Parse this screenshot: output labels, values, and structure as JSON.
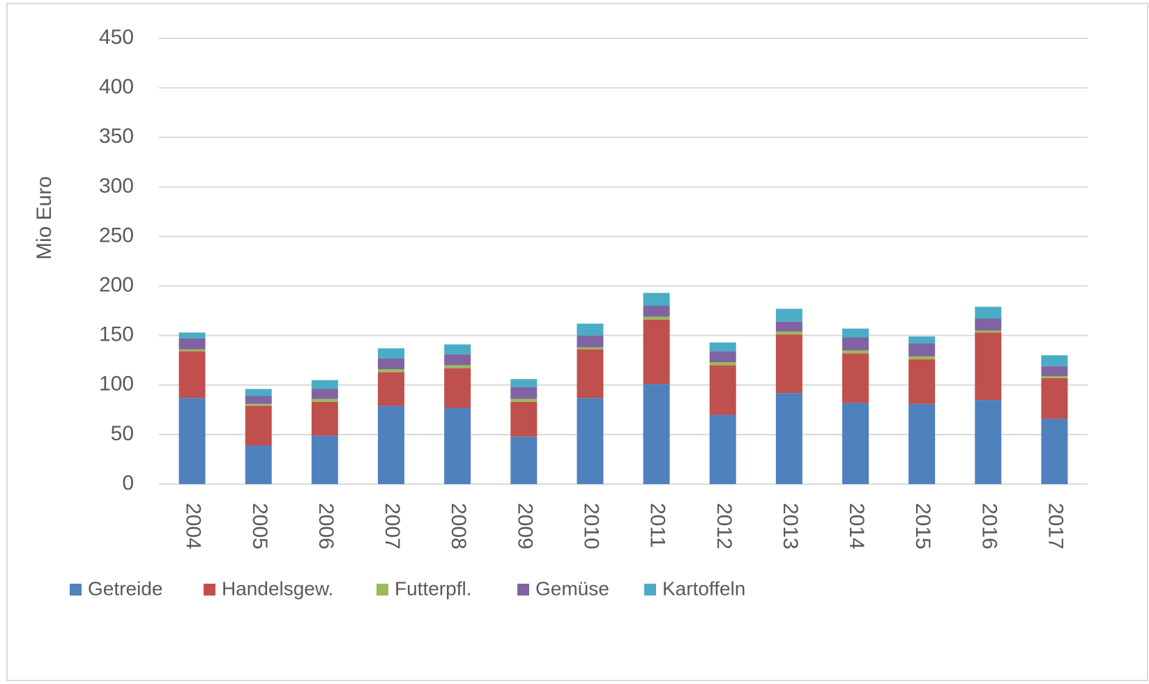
{
  "chart_data": {
    "type": "stacked_bar",
    "y_label": "Mio Euro",
    "categories": [
      "2004",
      "2005",
      "2006",
      "2007",
      "2008",
      "2009",
      "2010",
      "2011",
      "2012",
      "2013",
      "2014",
      "2015",
      "2016",
      "2017"
    ],
    "series": [
      {
        "name": "Getreide",
        "color": "#4f81bd",
        "values": [
          87,
          39,
          49,
          79,
          77,
          48,
          87,
          101,
          70,
          92,
          82,
          81,
          85,
          66
        ]
      },
      {
        "name": "Handelsgew.",
        "color": "#c0504d",
        "values": [
          47,
          40,
          34,
          34,
          40,
          35,
          49,
          65,
          50,
          59,
          50,
          45,
          68,
          41
        ]
      },
      {
        "name": "Futterpfl.",
        "color": "#9bbb59",
        "values": [
          2,
          2,
          3,
          3,
          3,
          3,
          2,
          3,
          3,
          3,
          3,
          3,
          2,
          2
        ]
      },
      {
        "name": "Gemüse",
        "color": "#8064a2",
        "values": [
          11,
          8,
          10,
          11,
          11,
          12,
          12,
          11,
          11,
          10,
          13,
          13,
          12,
          10
        ]
      },
      {
        "name": "Kartoffeln",
        "color": "#4bacc6",
        "values": [
          6,
          7,
          9,
          10,
          10,
          8,
          12,
          13,
          9,
          13,
          9,
          7,
          12,
          11
        ]
      }
    ],
    "ylim": [
      0,
      450
    ],
    "yticks": [
      0,
      50,
      100,
      150,
      200,
      250,
      300,
      350,
      400,
      450
    ],
    "grid": true,
    "legend": "bottom"
  }
}
